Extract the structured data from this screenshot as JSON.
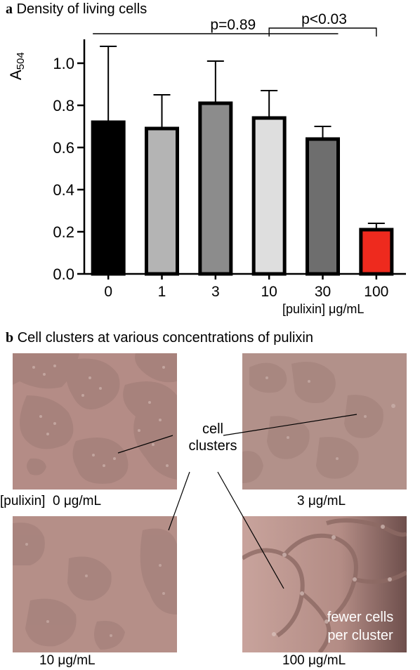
{
  "panel_a": {
    "letter": "a",
    "heading": "Density of living cells"
  },
  "chart_data": {
    "type": "bar",
    "title": "Density of living cells",
    "categories": [
      "0",
      "1",
      "3",
      "10",
      "30",
      "100"
    ],
    "values": [
      0.72,
      0.69,
      0.81,
      0.74,
      0.64,
      0.21
    ],
    "error_upper": [
      1.08,
      0.85,
      1.01,
      0.87,
      0.7,
      0.24
    ],
    "bar_colors": [
      "#000000",
      "#b4b4b4",
      "#8c8c8c",
      "#dedede",
      "#6e6e6e",
      "#ee2a1e"
    ],
    "ylabel": "A",
    "ylabel_subscript": "504",
    "xlabel": "[pulixin] μg/mL",
    "ylim": [
      0,
      1.1
    ],
    "yticks": [
      "0.0",
      "0.2",
      "0.4",
      "0.6",
      "0.8",
      "1.0"
    ],
    "grid": false,
    "annotations": [
      {
        "text": "p=0.89",
        "from": "0",
        "to": "30"
      },
      {
        "text": "p<0.03",
        "from": "10",
        "to": "100"
      }
    ]
  },
  "panel_b": {
    "letter": "b",
    "heading": "Cell clusters at various concentrations of pulixin",
    "label_cell_clusters_1": "cell",
    "label_cell_clusters_2": "clusters",
    "label_fewer_1": "fewer cells",
    "label_fewer_2": "per cluster",
    "captions": {
      "c0_prefix": "[pulixin]",
      "c0": "0 μg/mL",
      "c3": "3 μg/mL",
      "c10": "10 μg/mL",
      "c100": "100 μg/mL"
    }
  },
  "colors": {
    "micro_bg_0": "#b48c86",
    "micro_bg_3": "#b2918a",
    "micro_bg_10": "#b58f88",
    "micro_bg_100": "#c09a94",
    "red_bar": "#ee2a1e"
  }
}
